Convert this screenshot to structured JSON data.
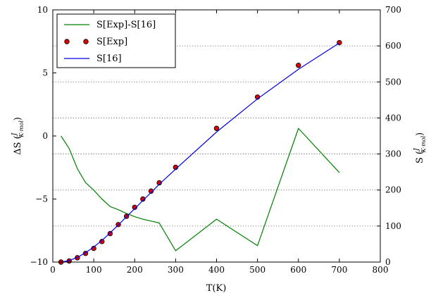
{
  "chart_data": {
    "type": "line",
    "x": {
      "label": "T(K)",
      "lim": [
        0,
        800
      ],
      "ticks": [
        0,
        100,
        200,
        300,
        400,
        500,
        600,
        700,
        800
      ]
    },
    "y_left": {
      "label_main": "ΔS (",
      "label_frac_num": "J",
      "label_frac_den": "K·mol",
      "label_close": ")",
      "lim": [
        -10,
        10
      ],
      "ticks": [
        -10,
        -5,
        0,
        5,
        10
      ],
      "tick_labels": [
        "−10",
        "−5",
        "0",
        "5",
        "10"
      ]
    },
    "y_right": {
      "label_main": "S (",
      "label_frac_num": "J",
      "label_frac_den": "K·mol",
      "label_close": ")",
      "lim": [
        0,
        700
      ],
      "ticks": [
        0,
        100,
        200,
        300,
        400,
        500,
        600,
        700
      ]
    },
    "grid": "dotted horizontal at right-axis ticks",
    "legend_position": "top-left",
    "series": [
      {
        "name": "S[Exp]-S[16]",
        "axis": "left",
        "style": "line",
        "color": "#008000",
        "points": [
          [
            20,
            0.0
          ],
          [
            40,
            -1.0
          ],
          [
            60,
            -2.6
          ],
          [
            80,
            -3.7
          ],
          [
            100,
            -4.3
          ],
          [
            120,
            -5.0
          ],
          [
            140,
            -5.6
          ],
          [
            160,
            -5.85
          ],
          [
            180,
            -6.15
          ],
          [
            200,
            -6.4
          ],
          [
            220,
            -6.6
          ],
          [
            240,
            -6.75
          ],
          [
            260,
            -6.9
          ],
          [
            300,
            -9.1
          ],
          [
            400,
            -6.6
          ],
          [
            500,
            -8.7
          ],
          [
            600,
            0.6
          ],
          [
            700,
            -2.9
          ]
        ]
      },
      {
        "name": "S[Exp]",
        "axis": "right",
        "style": "markers",
        "color": "#e00000",
        "points": [
          [
            20,
            0
          ],
          [
            40,
            3
          ],
          [
            60,
            12
          ],
          [
            80,
            24
          ],
          [
            100,
            38
          ],
          [
            120,
            57
          ],
          [
            140,
            79
          ],
          [
            160,
            104
          ],
          [
            180,
            127
          ],
          [
            200,
            152
          ],
          [
            220,
            175
          ],
          [
            240,
            197
          ],
          [
            260,
            220
          ],
          [
            300,
            263
          ],
          [
            400,
            371
          ],
          [
            500,
            458
          ],
          [
            600,
            546
          ],
          [
            700,
            609
          ]
        ]
      },
      {
        "name": "S[16]",
        "axis": "right",
        "style": "line",
        "color": "#0000e0",
        "points": [
          [
            20,
            0
          ],
          [
            40,
            4
          ],
          [
            60,
            13
          ],
          [
            80,
            26
          ],
          [
            100,
            42
          ],
          [
            120,
            60
          ],
          [
            140,
            81
          ],
          [
            160,
            103
          ],
          [
            180,
            126
          ],
          [
            200,
            148
          ],
          [
            220,
            171
          ],
          [
            240,
            193
          ],
          [
            260,
            216
          ],
          [
            300,
            258
          ],
          [
            400,
            361
          ],
          [
            500,
            453
          ],
          [
            600,
            535
          ],
          [
            700,
            608
          ]
        ]
      }
    ]
  }
}
